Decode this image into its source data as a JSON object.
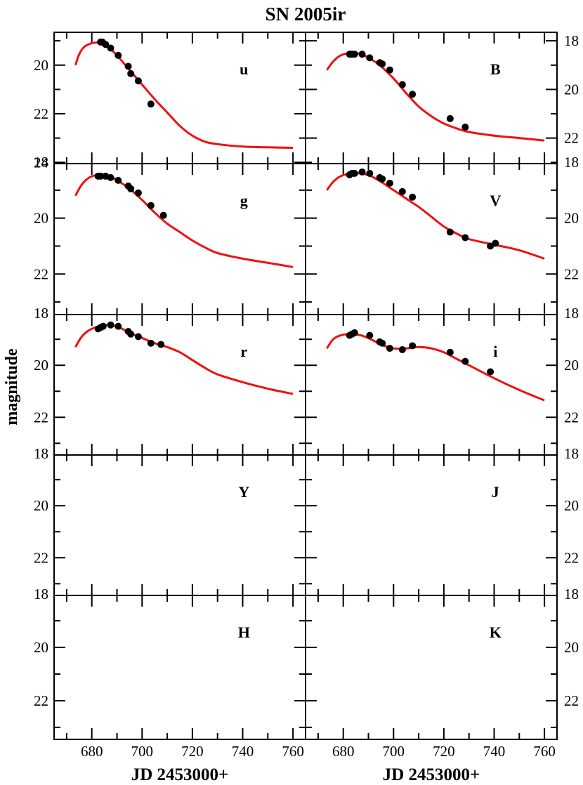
{
  "chart_data": {
    "type": "scatter",
    "title": "SN 2005ir",
    "ylabel": "magnitude",
    "xlabels": [
      "JD 2453000+",
      "JD 2453000+"
    ],
    "xlim": [
      665,
      765
    ],
    "x_ticks": [
      680,
      700,
      720,
      740,
      760
    ],
    "y_ticks": [
      18,
      20,
      22,
      24
    ],
    "y_inverted": true,
    "grid": false,
    "panels": [
      {
        "band": "u",
        "ylim": [
          24.05,
          18.65
        ],
        "y_ticks": [
          20,
          22,
          24
        ],
        "y_tick_side": "left",
        "points": [
          [
            683.5,
            19.05
          ],
          [
            684.2,
            19.05
          ],
          [
            685.5,
            19.15
          ],
          [
            687.5,
            19.3
          ],
          [
            690.5,
            19.6
          ],
          [
            694.5,
            20.05
          ],
          [
            695.5,
            20.35
          ],
          [
            698.5,
            20.65
          ],
          [
            703.5,
            21.6
          ]
        ],
        "model": [
          [
            673.5,
            20.0
          ],
          [
            675,
            19.55
          ],
          [
            677,
            19.25
          ],
          [
            680,
            19.1
          ],
          [
            683,
            19.08
          ],
          [
            686,
            19.2
          ],
          [
            690,
            19.6
          ],
          [
            695,
            20.2
          ],
          [
            700,
            20.8
          ],
          [
            705,
            21.4
          ],
          [
            710,
            21.95
          ],
          [
            715,
            22.5
          ],
          [
            720,
            22.9
          ],
          [
            725,
            23.15
          ],
          [
            730,
            23.25
          ],
          [
            740,
            23.35
          ],
          [
            750,
            23.38
          ],
          [
            760,
            23.4
          ]
        ]
      },
      {
        "band": "B",
        "ylim": [
          23.05,
          17.65
        ],
        "y_ticks": [
          18,
          20,
          22
        ],
        "y_tick_side": "right",
        "points": [
          [
            682.5,
            18.55
          ],
          [
            683.5,
            18.55
          ],
          [
            684.5,
            18.55
          ],
          [
            687.5,
            18.55
          ],
          [
            690.5,
            18.7
          ],
          [
            694.5,
            18.9
          ],
          [
            695.5,
            18.95
          ],
          [
            698.5,
            19.2
          ],
          [
            703.5,
            19.8
          ],
          [
            707.5,
            20.2
          ],
          [
            722.5,
            21.2
          ],
          [
            728.5,
            21.55
          ]
        ],
        "model": [
          [
            673.5,
            19.2
          ],
          [
            676,
            18.85
          ],
          [
            679,
            18.6
          ],
          [
            683,
            18.5
          ],
          [
            687,
            18.55
          ],
          [
            691,
            18.75
          ],
          [
            695,
            19.05
          ],
          [
            700,
            19.55
          ],
          [
            705,
            20.15
          ],
          [
            710,
            20.7
          ],
          [
            715,
            21.1
          ],
          [
            720,
            21.4
          ],
          [
            725,
            21.6
          ],
          [
            730,
            21.75
          ],
          [
            740,
            21.9
          ],
          [
            750,
            22.0
          ],
          [
            760,
            22.1
          ]
        ]
      },
      {
        "band": "g",
        "ylim": [
          23.45,
          18.05
        ],
        "y_ticks": [
          18,
          20,
          22
        ],
        "y_tick_side": "left",
        "points": [
          [
            682.5,
            18.5
          ],
          [
            683.5,
            18.5
          ],
          [
            685.5,
            18.5
          ],
          [
            687.5,
            18.55
          ],
          [
            690.5,
            18.65
          ],
          [
            694.5,
            18.85
          ],
          [
            695.5,
            18.95
          ],
          [
            698.5,
            19.1
          ],
          [
            703.5,
            19.55
          ],
          [
            708.5,
            19.9
          ]
        ],
        "model": [
          [
            673.5,
            19.2
          ],
          [
            676,
            18.8
          ],
          [
            679,
            18.55
          ],
          [
            683,
            18.45
          ],
          [
            687,
            18.5
          ],
          [
            691,
            18.7
          ],
          [
            695,
            18.95
          ],
          [
            700,
            19.35
          ],
          [
            705,
            19.8
          ],
          [
            710,
            20.2
          ],
          [
            715,
            20.5
          ],
          [
            720,
            20.8
          ],
          [
            725,
            21.05
          ],
          [
            730,
            21.25
          ],
          [
            740,
            21.45
          ],
          [
            750,
            21.6
          ],
          [
            760,
            21.75
          ]
        ]
      },
      {
        "band": "V",
        "ylim": [
          23.45,
          18.05
        ],
        "y_ticks": [
          18,
          20,
          22
        ],
        "y_tick_side": "right",
        "points": [
          [
            682.5,
            18.45
          ],
          [
            683.5,
            18.4
          ],
          [
            684.5,
            18.4
          ],
          [
            687.5,
            18.35
          ],
          [
            690.5,
            18.4
          ],
          [
            694.5,
            18.55
          ],
          [
            695.5,
            18.6
          ],
          [
            698.5,
            18.75
          ],
          [
            703.5,
            19.05
          ],
          [
            707.5,
            19.25
          ],
          [
            722.5,
            20.5
          ],
          [
            728.5,
            20.7
          ],
          [
            738.5,
            21.0
          ],
          [
            740.5,
            20.9
          ]
        ],
        "model": [
          [
            673.5,
            19.0
          ],
          [
            676,
            18.7
          ],
          [
            679,
            18.5
          ],
          [
            683,
            18.4
          ],
          [
            687,
            18.4
          ],
          [
            691,
            18.5
          ],
          [
            695,
            18.7
          ],
          [
            700,
            19.0
          ],
          [
            705,
            19.3
          ],
          [
            710,
            19.6
          ],
          [
            715,
            19.95
          ],
          [
            720,
            20.3
          ],
          [
            725,
            20.55
          ],
          [
            730,
            20.75
          ],
          [
            740,
            20.95
          ],
          [
            750,
            21.15
          ],
          [
            760,
            21.45
          ]
        ]
      },
      {
        "band": "r",
        "ylim": [
          23.45,
          18.05
        ],
        "y_ticks": [
          18,
          20,
          22
        ],
        "y_tick_side": "left",
        "points": [
          [
            682.5,
            18.6
          ],
          [
            683.5,
            18.55
          ],
          [
            684.5,
            18.5
          ],
          [
            687.5,
            18.45
          ],
          [
            690.5,
            18.5
          ],
          [
            694.5,
            18.7
          ],
          [
            695.5,
            18.8
          ],
          [
            698.5,
            18.9
          ],
          [
            703.5,
            19.15
          ],
          [
            707.5,
            19.2
          ]
        ],
        "model": [
          [
            673.5,
            19.3
          ],
          [
            676,
            18.9
          ],
          [
            679,
            18.65
          ],
          [
            683,
            18.5
          ],
          [
            687,
            18.45
          ],
          [
            691,
            18.55
          ],
          [
            695,
            18.75
          ],
          [
            700,
            18.95
          ],
          [
            705,
            19.15
          ],
          [
            710,
            19.3
          ],
          [
            715,
            19.5
          ],
          [
            720,
            19.8
          ],
          [
            725,
            20.1
          ],
          [
            730,
            20.35
          ],
          [
            740,
            20.65
          ],
          [
            750,
            20.9
          ],
          [
            760,
            21.1
          ]
        ]
      },
      {
        "band": "i",
        "ylim": [
          23.45,
          18.05
        ],
        "y_ticks": [
          18,
          20,
          22
        ],
        "y_tick_side": "right",
        "points": [
          [
            682.5,
            18.85
          ],
          [
            683.5,
            18.8
          ],
          [
            684.5,
            18.75
          ],
          [
            690.5,
            18.85
          ],
          [
            694.5,
            19.1
          ],
          [
            695.5,
            19.15
          ],
          [
            698.5,
            19.35
          ],
          [
            703.5,
            19.4
          ],
          [
            707.5,
            19.25
          ],
          [
            722.5,
            19.5
          ],
          [
            728.5,
            19.85
          ],
          [
            738.5,
            20.25
          ]
        ],
        "model": [
          [
            673.5,
            19.35
          ],
          [
            676,
            19.0
          ],
          [
            679,
            18.85
          ],
          [
            683,
            18.8
          ],
          [
            687,
            18.85
          ],
          [
            691,
            19.0
          ],
          [
            695,
            19.2
          ],
          [
            700,
            19.35
          ],
          [
            705,
            19.35
          ],
          [
            710,
            19.3
          ],
          [
            715,
            19.35
          ],
          [
            720,
            19.5
          ],
          [
            725,
            19.75
          ],
          [
            730,
            20.0
          ],
          [
            740,
            20.5
          ],
          [
            750,
            20.95
          ],
          [
            760,
            21.35
          ]
        ]
      },
      {
        "band": "Y",
        "ylim": [
          23.45,
          18.05
        ],
        "y_ticks": [
          18,
          20,
          22
        ],
        "y_tick_side": "left",
        "points": [],
        "model": []
      },
      {
        "band": "J",
        "ylim": [
          23.45,
          18.05
        ],
        "y_ticks": [
          18,
          20,
          22
        ],
        "y_tick_side": "right",
        "points": [],
        "model": []
      },
      {
        "band": "H",
        "ylim": [
          23.45,
          18.05
        ],
        "y_ticks": [
          18,
          20,
          22
        ],
        "y_tick_side": "left",
        "points": [],
        "model": []
      },
      {
        "band": "K",
        "ylim": [
          23.45,
          18.05
        ],
        "y_ticks": [
          18,
          20,
          22
        ],
        "y_tick_side": "right",
        "points": [],
        "model": []
      }
    ],
    "colors": {
      "model": "#ee1111",
      "points": "#000000",
      "axes": "#000000"
    }
  }
}
